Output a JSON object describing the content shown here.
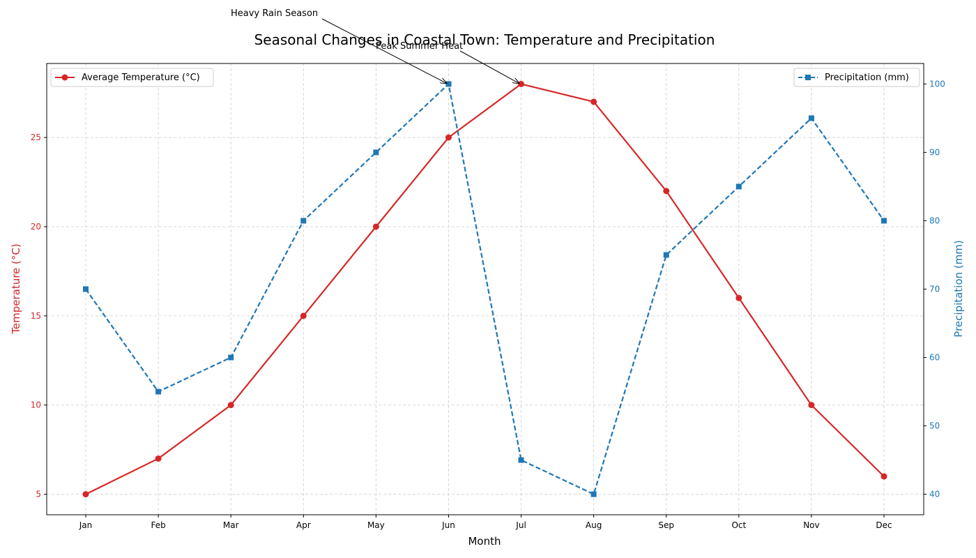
{
  "chart_data": {
    "type": "line",
    "title": "Seasonal Changes in Coastal Town: Temperature and Precipitation",
    "xlabel": "Month",
    "ylabel_left": "Temperature (°C)",
    "ylabel_right": "Precipitation (mm)",
    "categories": [
      "Jan",
      "Feb",
      "Mar",
      "Apr",
      "May",
      "Jun",
      "Jul",
      "Aug",
      "Sep",
      "Oct",
      "Nov",
      "Dec"
    ],
    "ylim_left": [
      3.85,
      29.15
    ],
    "ylim_right": [
      37,
      103
    ],
    "yticks_left": [
      5,
      10,
      15,
      20,
      25
    ],
    "yticks_right": [
      40,
      50,
      60,
      70,
      80,
      90,
      100
    ],
    "grid": true,
    "series": [
      {
        "name": "Average Temperature (°C)",
        "axis": "left",
        "color": "#d62728",
        "line_style": "solid",
        "marker": "circle",
        "values": [
          5,
          7,
          10,
          15,
          20,
          25,
          28,
          27,
          22,
          16,
          10,
          6
        ],
        "legend_position": "top-left"
      },
      {
        "name": "Precipitation (mm)",
        "axis": "right",
        "color": "#1f77b4",
        "line_style": "dashed",
        "marker": "square",
        "values": [
          70,
          55,
          60,
          80,
          90,
          100,
          45,
          40,
          75,
          85,
          95,
          80
        ],
        "legend_position": "top-right"
      }
    ],
    "annotations": [
      {
        "text": "Heavy Rain Season",
        "target_category": "Jun",
        "target_axis": "left",
        "target_value": 28
      },
      {
        "text": "Peak Summer Heat",
        "target_category": "Jul",
        "target_axis": "left",
        "target_value": 28
      }
    ]
  }
}
